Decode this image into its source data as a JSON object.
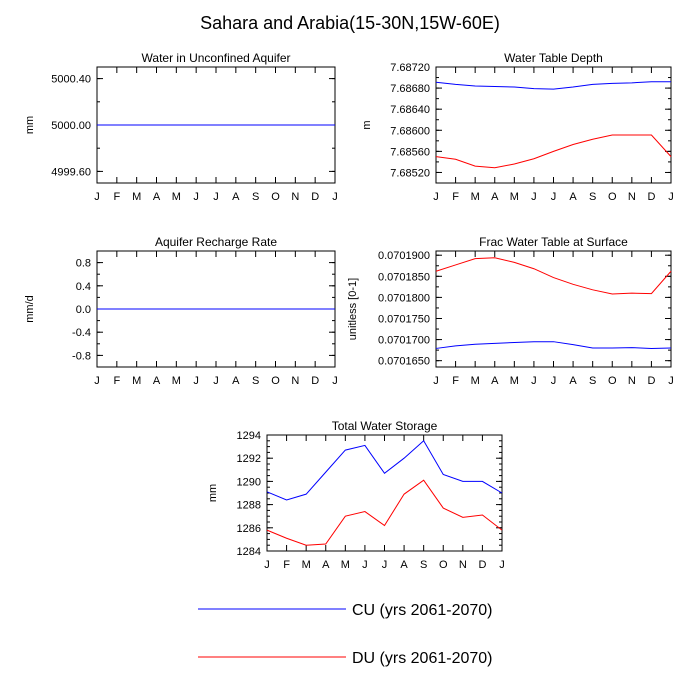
{
  "figure_title": "Sahara and Arabia(15-30N,15W-60E)",
  "colors": {
    "cu": "#0000ff",
    "du": "#ff0000"
  },
  "legend": [
    {
      "label": "CU (yrs 2061-2070)",
      "color": "#0000ff"
    },
    {
      "label": "DU (yrs 2061-2070)",
      "color": "#ff0000"
    }
  ],
  "chart_data": [
    {
      "type": "line",
      "title": "Water in Unconfined Aquifer",
      "ylabel": "mm",
      "ylim": [
        4999.5,
        5000.5
      ],
      "yticks": [
        4999.6,
        5000.0,
        5000.4
      ],
      "yminor_step": 0.2,
      "yformat": 2,
      "xticks": [
        "J",
        "F",
        "M",
        "A",
        "M",
        "J",
        "J",
        "A",
        "S",
        "O",
        "N",
        "D",
        "J"
      ],
      "series": [
        {
          "name": "CU (yrs 2061-2070)",
          "values": [
            5000,
            5000,
            5000,
            5000,
            5000,
            5000,
            5000,
            5000,
            5000,
            5000,
            5000,
            5000,
            5000
          ]
        },
        {
          "name": "DU (yrs 2061-2070)",
          "values": [
            5000,
            5000,
            5000,
            5000,
            5000,
            5000,
            5000,
            5000,
            5000,
            5000,
            5000,
            5000,
            5000
          ]
        }
      ]
    },
    {
      "type": "line",
      "title": "Water Table Depth",
      "ylabel": "m",
      "ylim": [
        7.685,
        7.6872
      ],
      "yticks": [
        7.6852,
        7.6856,
        7.686,
        7.6864,
        7.6868,
        7.6872
      ],
      "yminor_step": 0.0002,
      "yformat": 5,
      "xticks": [
        "J",
        "F",
        "M",
        "A",
        "M",
        "J",
        "J",
        "A",
        "S",
        "O",
        "N",
        "D",
        "J"
      ],
      "series": [
        {
          "name": "CU (yrs 2061-2070)",
          "values": [
            7.68691,
            7.68687,
            7.68684,
            7.68683,
            7.68682,
            7.68679,
            7.68678,
            7.68682,
            7.68687,
            7.68689,
            7.6869,
            7.68692,
            7.68692
          ]
        },
        {
          "name": "DU (yrs 2061-2070)",
          "values": [
            7.6855,
            7.68545,
            7.68532,
            7.68529,
            7.68536,
            7.68546,
            7.6856,
            7.68573,
            7.68583,
            7.68591,
            7.68591,
            7.68591,
            7.6855
          ]
        }
      ]
    },
    {
      "type": "line",
      "title": "Aquifer Recharge Rate",
      "ylabel": "mm/d",
      "ylim": [
        -1.0,
        1.0
      ],
      "yticks": [
        -0.8,
        -0.4,
        0.0,
        0.4,
        0.8
      ],
      "yminor_step": 0.2,
      "yformat": 1,
      "xticks": [
        "J",
        "F",
        "M",
        "A",
        "M",
        "J",
        "J",
        "A",
        "S",
        "O",
        "N",
        "D",
        "J"
      ],
      "series": [
        {
          "name": "CU (yrs 2061-2070)",
          "values": [
            0,
            0,
            0,
            0,
            0,
            0,
            0,
            0,
            0,
            0,
            0,
            0,
            0
          ]
        },
        {
          "name": "DU (yrs 2061-2070)",
          "values": [
            0,
            0,
            0,
            0,
            0,
            0,
            0,
            0,
            0,
            0,
            0,
            0,
            0
          ]
        }
      ]
    },
    {
      "type": "line",
      "title": "Frac Water Table at Surface",
      "ylabel": "unitless [0-1]",
      "ylim": [
        0.0701635,
        0.070191
      ],
      "yticks": [
        0.070165,
        0.07017,
        0.070175,
        0.07018,
        0.070185,
        0.07019
      ],
      "yminor_step": 2.5e-06,
      "yformat": 7,
      "xticks": [
        "J",
        "F",
        "M",
        "A",
        "M",
        "J",
        "J",
        "A",
        "S",
        "O",
        "N",
        "D",
        "J"
      ],
      "series": [
        {
          "name": "CU (yrs 2061-2070)",
          "values": [
            0.0701679,
            0.0701685,
            0.0701689,
            0.0701691,
            0.0701693,
            0.0701695,
            0.0701695,
            0.0701688,
            0.070168,
            0.070168,
            0.0701681,
            0.0701679,
            0.070168
          ]
        },
        {
          "name": "DU (yrs 2061-2070)",
          "values": [
            0.0701862,
            0.0701877,
            0.0701892,
            0.0701894,
            0.0701883,
            0.0701868,
            0.0701847,
            0.0701831,
            0.0701818,
            0.0701808,
            0.070181,
            0.0701809,
            0.0701862
          ]
        }
      ]
    },
    {
      "type": "line",
      "title": "Total Water Storage",
      "ylabel": "mm",
      "ylim": [
        1284,
        1294
      ],
      "yticks": [
        1284,
        1286,
        1288,
        1290,
        1292,
        1294
      ],
      "yminor_step": 0.5,
      "yformat": 0,
      "xticks": [
        "J",
        "F",
        "M",
        "A",
        "M",
        "J",
        "J",
        "A",
        "S",
        "O",
        "N",
        "D",
        "J"
      ],
      "series": [
        {
          "name": "CU (yrs 2061-2070)",
          "values": [
            1289.1,
            1288.4,
            1288.9,
            1290.8,
            1292.7,
            1293.1,
            1290.7,
            1292,
            1293.5,
            1290.6,
            1290,
            1290,
            1289
          ]
        },
        {
          "name": "DU (yrs 2061-2070)",
          "values": [
            1285.8,
            1285.1,
            1284.5,
            1284.6,
            1287,
            1287.4,
            1286.2,
            1288.9,
            1290.1,
            1287.7,
            1286.9,
            1287.1,
            1285.8
          ]
        }
      ]
    }
  ]
}
